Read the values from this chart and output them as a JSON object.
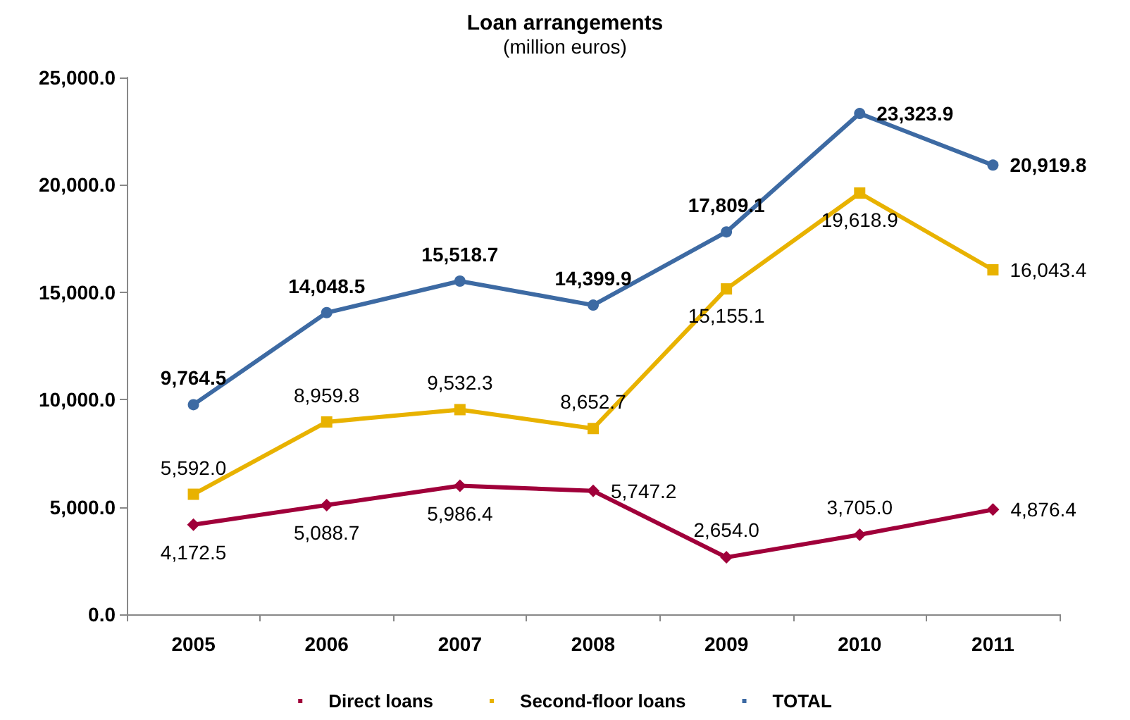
{
  "chart_data": {
    "type": "line",
    "title": "Loan arrangements",
    "subtitle": "(million euros)",
    "categories": [
      "2005",
      "2006",
      "2007",
      "2008",
      "2009",
      "2010",
      "2011"
    ],
    "series": [
      {
        "name": "Direct loans",
        "color": "#a0003a",
        "marker": "diamond",
        "values": [
          4172.5,
          5088.7,
          5986.4,
          5747.2,
          2654.0,
          3705.0,
          4876.4
        ],
        "value_labels": [
          "4,172.5",
          "5,088.7",
          "5,986.4",
          "5,747.2",
          "2,654.0",
          "3,705.0",
          "4,876.4"
        ]
      },
      {
        "name": "Second-floor loans",
        "color": "#e8b200",
        "marker": "square",
        "values": [
          5592.0,
          8959.8,
          9532.3,
          8652.7,
          15155.1,
          19618.9,
          16043.4
        ],
        "value_labels": [
          "5,592.0",
          "8,959.8",
          "9,532.3",
          "8,652.7",
          "15,155.1",
          "19,618.9",
          "16,043.4"
        ]
      },
      {
        "name": "TOTAL",
        "color": "#3d6aa3",
        "marker": "circle",
        "values": [
          9764.5,
          14048.5,
          15518.7,
          14399.9,
          17809.1,
          23323.9,
          20919.8
        ],
        "value_labels": [
          "9,764.5",
          "14,048.5",
          "15,518.7",
          "14,399.9",
          "17,809.1",
          "23,323.9",
          "20,919.8"
        ]
      }
    ],
    "ylim": [
      0,
      25000
    ],
    "yticks": [
      {
        "value": 0,
        "label": "0.0"
      },
      {
        "value": 5000,
        "label": "5,000.0"
      },
      {
        "value": 10000,
        "label": "10,000.0"
      },
      {
        "value": 15000,
        "label": "15,000.0"
      },
      {
        "value": 20000,
        "label": "20,000.0"
      },
      {
        "value": 25000,
        "label": "25,000.0"
      }
    ],
    "grid": false,
    "legend": "bottom",
    "line_style": "solid"
  }
}
